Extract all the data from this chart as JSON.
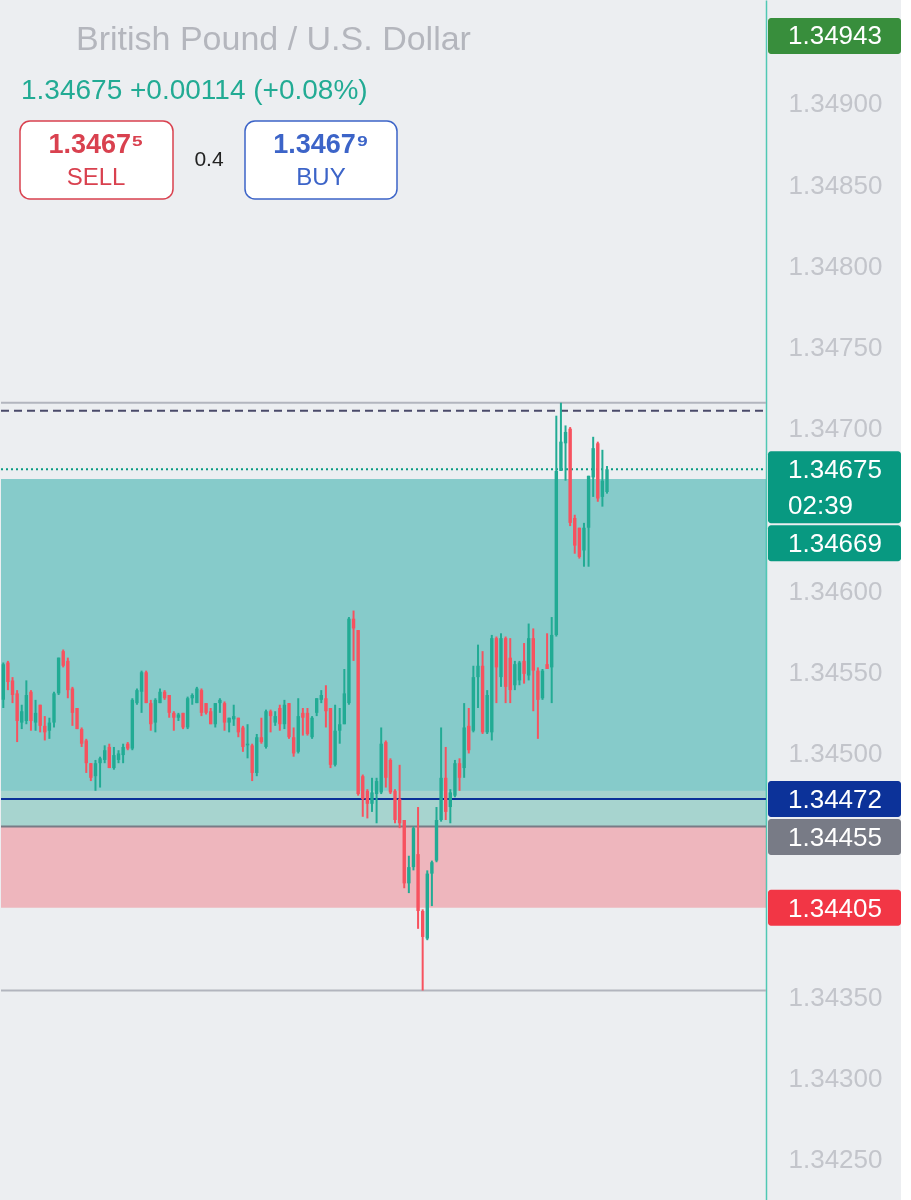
{
  "chart_data": {
    "type": "candlestick",
    "title": "British Pound / U.S. Dollar",
    "subtitle": "1.34675 +0.00114 (+0.08%)",
    "annotations": [
      "1.3467⁵",
      "SELL",
      "0.4",
      "1.3467⁹",
      "BUY",
      "1.34943"
    ],
    "categories": [
      null,
      null,
      null,
      null,
      null,
      null,
      null,
      null,
      null,
      null,
      null,
      null,
      null,
      null,
      null,
      null,
      null,
      null,
      null,
      null,
      null,
      null,
      null,
      null,
      null,
      null,
      null,
      null,
      null,
      null,
      null,
      null,
      null,
      null,
      null,
      null,
      null,
      null,
      null,
      null,
      null,
      null,
      null,
      null,
      null,
      null,
      null,
      null,
      null,
      null,
      null,
      null,
      null,
      null,
      null,
      null,
      null,
      null,
      null,
      null,
      null,
      null,
      null,
      null,
      null,
      null,
      null,
      null,
      null,
      null,
      null,
      null,
      null,
      null,
      null,
      null,
      null,
      null,
      null,
      null,
      null,
      null,
      null,
      null,
      null,
      null,
      null,
      null,
      null,
      null,
      null,
      null,
      null,
      null,
      null,
      null,
      null,
      null,
      null,
      null,
      null,
      null,
      null,
      null,
      null,
      null,
      null,
      null,
      null,
      null,
      null,
      null,
      null,
      null,
      null,
      null,
      null,
      null,
      null,
      null,
      null,
      null,
      null,
      null,
      null,
      null,
      null,
      null,
      null,
      null,
      null,
      null,
      null,
      null,
      null,
      null,
      null,
      null,
      null,
      null,
      null,
      null,
      null,
      null,
      null,
      null,
      null,
      null,
      null,
      null,
      null,
      null,
      null,
      null,
      null,
      null,
      null,
      null,
      null,
      null,
      null,
      null,
      null,
      null,
      null,
      null
    ],
    "ohlc": [
      [
        1.34533,
        1.34556,
        1.34528,
        1.34555
      ],
      [
        1.34556,
        1.34557,
        1.34539,
        1.34544
      ],
      [
        1.34545,
        1.34547,
        1.34531,
        1.34536
      ],
      [
        1.34537,
        1.34539,
        1.34507,
        1.3452
      ],
      [
        1.34519,
        1.3453,
        1.34515,
        1.34526
      ],
      [
        1.3452,
        1.34545,
        1.34518,
        1.34536
      ],
      [
        1.34538,
        1.34539,
        1.34514,
        1.3452
      ],
      [
        1.34519,
        1.34533,
        1.34514,
        1.34525
      ],
      [
        1.3453,
        1.3453,
        1.34513,
        1.34517
      ],
      [
        1.34517,
        1.34523,
        1.34508,
        1.34513
      ],
      [
        1.34514,
        1.34522,
        1.34509,
        1.34519
      ],
      [
        1.34519,
        1.34538,
        1.34516,
        1.34537
      ],
      [
        1.34537,
        1.34559,
        1.34536,
        1.34559
      ],
      [
        1.34563,
        1.34564,
        1.34553,
        1.34554
      ],
      [
        1.34557,
        1.34559,
        1.34534,
        1.34539
      ],
      [
        1.3454,
        1.34541,
        1.34517,
        1.34525
      ],
      [
        1.34528,
        1.34528,
        1.34515,
        1.34515
      ],
      [
        1.34515,
        1.34516,
        1.34504,
        1.34506
      ],
      [
        1.34508,
        1.34509,
        1.34488,
        1.34494
      ],
      [
        1.34494,
        1.34494,
        1.34483,
        1.34485
      ],
      [
        1.34486,
        1.34496,
        1.34477,
        1.34494
      ],
      [
        1.34494,
        1.34498,
        1.34479,
        1.34497
      ],
      [
        1.34496,
        1.34505,
        1.34494,
        1.34502
      ],
      [
        1.34504,
        1.34506,
        1.34491,
        1.34491
      ],
      [
        1.34491,
        1.34504,
        1.3449,
        1.34499
      ],
      [
        1.34496,
        1.34502,
        1.34494,
        1.345
      ],
      [
        1.34499,
        1.34506,
        1.34494,
        1.34504
      ],
      [
        1.34506,
        1.34507,
        1.34502,
        1.34503
      ],
      [
        1.34503,
        1.34534,
        1.34502,
        1.34533
      ],
      [
        1.34531,
        1.3454,
        1.3453,
        1.34539
      ],
      [
        1.34538,
        1.34551,
        1.34525,
        1.3455
      ],
      [
        1.3455,
        1.34551,
        1.34531,
        1.34531
      ],
      [
        1.34531,
        1.34533,
        1.34514,
        1.34518
      ],
      [
        1.34519,
        1.34534,
        1.34513,
        1.34533
      ],
      [
        1.34531,
        1.3454,
        1.34531,
        1.34538
      ],
      [
        1.34538,
        1.34539,
        1.34533,
        1.34534
      ],
      [
        1.34536,
        1.34536,
        1.34522,
        1.34525
      ],
      [
        1.34525,
        1.34526,
        1.34514,
        1.34522
      ],
      [
        1.34522,
        1.34525,
        1.3452,
        1.34524
      ],
      [
        1.34525,
        1.34525,
        1.34515,
        1.34516
      ],
      [
        1.34516,
        1.34535,
        1.34515,
        1.34534
      ],
      [
        1.34534,
        1.34537,
        1.3453,
        1.34536
      ],
      [
        1.34531,
        1.34541,
        1.34531,
        1.3454
      ],
      [
        1.34539,
        1.3454,
        1.34523,
        1.34525
      ],
      [
        1.34531,
        1.34531,
        1.34524,
        1.34525
      ],
      [
        1.34526,
        1.34528,
        1.34518,
        1.34518
      ],
      [
        1.34518,
        1.34531,
        1.34516,
        1.34531
      ],
      [
        1.34531,
        1.34534,
        1.34525,
        1.34533
      ],
      [
        1.34531,
        1.34532,
        1.34514,
        1.34519
      ],
      [
        1.34519,
        1.34522,
        1.34513,
        1.34522
      ],
      [
        1.34521,
        1.3453,
        1.34517,
        1.34523
      ],
      [
        1.34522,
        1.34522,
        1.3451,
        1.34513
      ],
      [
        1.34516,
        1.34517,
        1.34501,
        1.34504
      ],
      [
        1.34505,
        1.34518,
        1.34497,
        1.34506
      ],
      [
        1.34505,
        1.34506,
        1.34483,
        1.34488
      ],
      [
        1.34488,
        1.34512,
        1.34486,
        1.3451
      ],
      [
        1.3451,
        1.34522,
        1.34506,
        1.34507
      ],
      [
        1.34504,
        1.34527,
        1.34503,
        1.34526
      ],
      [
        1.34526,
        1.34527,
        1.34513,
        1.34523
      ],
      [
        1.34519,
        1.34526,
        1.34517,
        1.34523
      ],
      [
        1.34528,
        1.3453,
        1.34514,
        1.34518
      ],
      [
        1.34518,
        1.34533,
        1.34515,
        1.3453
      ],
      [
        1.34531,
        1.34531,
        1.34509,
        1.3451
      ],
      [
        1.3451,
        1.34516,
        1.34498,
        1.345
      ],
      [
        1.34501,
        1.34534,
        1.345,
        1.34523
      ],
      [
        1.34525,
        1.34528,
        1.34511,
        1.34522
      ],
      [
        1.34525,
        1.34528,
        1.34511,
        1.34512
      ],
      [
        1.3451,
        1.34523,
        1.34509,
        1.34522
      ],
      [
        1.34525,
        1.34534,
        1.34523,
        1.34534
      ],
      [
        1.34533,
        1.34539,
        1.34531,
        1.34536
      ],
      [
        1.34534,
        1.34542,
        1.34516,
        1.34526
      ],
      [
        1.34528,
        1.34528,
        1.34491,
        1.34493
      ],
      [
        1.34493,
        1.3453,
        1.34492,
        1.34514
      ],
      [
        1.34514,
        1.34528,
        1.34506,
        1.34518
      ],
      [
        1.34518,
        1.34552,
        1.34518,
        1.34537
      ],
      [
        1.34531,
        1.34584,
        1.3453,
        1.34583
      ],
      [
        1.34583,
        1.34588,
        1.34557,
        1.34577
      ],
      [
        1.34576,
        1.34576,
        1.34474,
        1.34475
      ],
      [
        1.34486,
        1.34487,
        1.34461,
        1.34472
      ],
      [
        1.34477,
        1.34478,
        1.3446,
        1.34469
      ],
      [
        1.34469,
        1.34485,
        1.34464,
        1.34476
      ],
      [
        1.34475,
        1.34485,
        1.34457,
        1.34483
      ],
      [
        1.34476,
        1.34516,
        1.34475,
        1.34506
      ],
      [
        1.34507,
        1.34508,
        1.34479,
        1.34485
      ],
      [
        1.34496,
        1.34497,
        1.34475,
        1.34476
      ],
      [
        1.34477,
        1.34478,
        1.34457,
        1.34459
      ],
      [
        1.34472,
        1.34493,
        1.34454,
        1.34457
      ],
      [
        1.34459,
        1.34459,
        1.34417,
        1.3442
      ],
      [
        1.3442,
        1.34437,
        1.34414,
        1.3443
      ],
      [
        1.3443,
        1.34455,
        1.34428,
        1.34454
      ],
      [
        1.34438,
        1.34467,
        1.34392,
        1.34403
      ],
      [
        1.34403,
        1.34404,
        1.34354,
        1.34387
      ],
      [
        1.34386,
        1.34428,
        1.34385,
        1.34426
      ],
      [
        1.34426,
        1.34434,
        1.34406,
        1.34433
      ],
      [
        1.34434,
        1.34467,
        1.34433,
        1.34459
      ],
      [
        1.34459,
        1.34516,
        1.34458,
        1.34485
      ],
      [
        1.34485,
        1.34504,
        1.34459,
        1.34464
      ],
      [
        1.34467,
        1.34478,
        1.34457,
        1.34476
      ],
      [
        1.34474,
        1.34496,
        1.34473,
        1.34494
      ],
      [
        1.34494,
        1.34497,
        1.34477,
        1.34485
      ],
      [
        1.34491,
        1.34531,
        1.34485,
        1.34516
      ],
      [
        1.34517,
        1.34528,
        1.345,
        1.34502
      ],
      [
        1.34514,
        1.34554,
        1.34513,
        1.34547
      ],
      [
        1.34547,
        1.34567,
        1.34528,
        1.34554
      ],
      [
        1.34554,
        1.34563,
        1.34512,
        1.34513
      ],
      [
        1.34513,
        1.34539,
        1.34512,
        1.34536
      ],
      [
        1.34513,
        1.34573,
        1.34508,
        1.34571
      ],
      [
        1.34571,
        1.34572,
        1.34531,
        1.34553
      ],
      [
        1.34547,
        1.34574,
        1.34541,
        1.34571
      ],
      [
        1.34571,
        1.34572,
        1.34531,
        1.34541
      ],
      [
        1.34559,
        1.34571,
        1.34531,
        1.34539
      ],
      [
        1.34542,
        1.34557,
        1.34539,
        1.34555
      ],
      [
        1.34545,
        1.34557,
        1.34542,
        1.34556
      ],
      [
        1.34557,
        1.34568,
        1.34543,
        1.34549
      ],
      [
        1.34548,
        1.3458,
        1.34545,
        1.34571
      ],
      [
        1.34571,
        1.34577,
        1.34526,
        1.34551
      ],
      [
        1.34551,
        1.34553,
        1.34509,
        1.34533
      ],
      [
        1.34534,
        1.34552,
        1.34533,
        1.34551
      ],
      [
        1.34555,
        1.34574,
        1.34552,
        1.34552
      ],
      [
        1.34553,
        1.34584,
        1.34531,
        1.34573
      ],
      [
        1.34573,
        1.34708,
        1.34572,
        1.34674
      ],
      [
        1.34674,
        1.34716,
        1.34674,
        1.34692
      ],
      [
        1.34691,
        1.34702,
        1.34668,
        1.34698
      ],
      [
        1.347,
        1.34701,
        1.3464,
        1.34642
      ],
      [
        1.34645,
        1.34647,
        1.34623,
        1.34628
      ],
      [
        1.34639,
        1.34639,
        1.3462,
        1.34621
      ],
      [
        1.34625,
        1.34642,
        1.34615,
        1.34639
      ],
      [
        1.34639,
        1.34671,
        1.34615,
        1.34671
      ],
      [
        1.3467,
        1.34695,
        1.34658,
        1.34688
      ],
      [
        1.34691,
        1.34692,
        1.34655,
        1.34657
      ],
      [
        1.34658,
        1.34687,
        1.34652,
        1.34668
      ],
      [
        1.34661,
        1.34677,
        1.3466,
        1.34675
      ],
      null,
      null,
      null,
      null,
      null,
      null,
      null,
      null,
      null,
      null,
      null,
      null,
      null,
      null,
      null,
      null,
      null,
      null,
      null,
      null,
      null,
      null,
      null,
      null,
      null,
      null,
      null,
      null,
      null,
      null,
      null,
      null,
      null,
      null
    ],
    "colors": [
      "#22ab94",
      "#f7525f",
      "#f7525f",
      "#f7525f",
      "#22ab94",
      "#22ab94",
      "#f7525f",
      "#22ab94",
      "#f7525f",
      "#f7525f",
      "#22ab94",
      "#22ab94",
      "#22ab94",
      "#f7525f",
      "#f7525f",
      "#f7525f",
      "#f7525f",
      "#f7525f",
      "#f7525f",
      "#f7525f",
      "#22ab94",
      "#22ab94",
      "#22ab94",
      "#f7525f",
      "#22ab94",
      "#22ab94",
      "#22ab94",
      "#f7525f",
      "#22ab94",
      "#22ab94",
      "#22ab94",
      "#f7525f",
      "#f7525f",
      "#22ab94",
      "#22ab94",
      "#f7525f",
      "#f7525f",
      "#f7525f",
      "#22ab94",
      "#f7525f",
      "#22ab94",
      "#22ab94",
      "#22ab94",
      "#f7525f",
      "#f7525f",
      "#f7525f",
      "#22ab94",
      "#22ab94",
      "#f7525f",
      "#22ab94",
      "#22ab94",
      "#f7525f",
      "#f7525f",
      "#22ab94",
      "#f7525f",
      "#22ab94",
      "#f7525f",
      "#22ab94",
      "#f7525f",
      "#22ab94",
      "#f7525f",
      "#22ab94",
      "#f7525f",
      "#f7525f",
      "#22ab94",
      "#f7525f",
      "#f7525f",
      "#22ab94",
      "#22ab94",
      "#22ab94",
      "#f7525f",
      "#f7525f",
      "#22ab94",
      "#22ab94",
      "#22ab94",
      "#22ab94",
      "#f7525f",
      "#f7525f",
      "#f7525f",
      "#f7525f",
      "#22ab94",
      "#22ab94",
      "#22ab94",
      "#f7525f",
      "#f7525f",
      "#f7525f",
      "#f7525f",
      "#f7525f",
      "#22ab94",
      "#22ab94",
      "#f7525f",
      "#f7525f",
      "#22ab94",
      "#22ab94",
      "#22ab94",
      "#22ab94",
      "#f7525f",
      "#22ab94",
      "#22ab94",
      "#f7525f",
      "#22ab94",
      "#f7525f",
      "#22ab94",
      "#22ab94",
      "#f7525f",
      "#22ab94",
      "#22ab94",
      "#f7525f",
      "#22ab94",
      "#f7525f",
      "#f7525f",
      "#22ab94",
      "#22ab94",
      "#f7525f",
      "#22ab94",
      "#f7525f",
      "#f7525f",
      "#22ab94",
      "#f7525f",
      "#22ab94",
      "#22ab94",
      "#22ab94",
      "#22ab94",
      "#f7525f",
      "#f7525f",
      "#f7525f",
      "#22ab94",
      "#22ab94",
      "#22ab94",
      "#f7525f",
      "#22ab94",
      "#22ab94",
      null,
      null,
      null,
      null,
      null,
      null,
      null,
      null,
      null,
      null,
      null,
      null,
      null,
      null,
      null,
      null,
      null,
      null,
      null,
      null,
      null,
      null,
      null,
      null,
      null,
      null,
      null,
      null,
      null,
      null,
      null,
      null,
      null,
      null
    ],
    "ylim": [
      1.34225,
      1.34964
    ],
    "yticks": [
      {
        "value": 1.3425,
        "label": "1.34250"
      },
      {
        "value": 1.343,
        "label": "1.34300"
      },
      {
        "value": 1.3435,
        "label": "1.34350"
      },
      {
        "value": 1.345,
        "label": "1.34500"
      },
      {
        "value": 1.3455,
        "label": "1.34550"
      },
      {
        "value": 1.346,
        "label": "1.34600"
      },
      {
        "value": 1.347,
        "label": "1.34700"
      },
      {
        "value": 1.3475,
        "label": "1.34750"
      },
      {
        "value": 1.348,
        "label": "1.34800"
      },
      {
        "value": 1.3485,
        "label": "1.34850"
      },
      {
        "value": 1.349,
        "label": "1.34900"
      }
    ],
    "tick_labels": "y",
    "bands": [
      {
        "axis": "y",
        "from": 1.34477,
        "to": 1.34669,
        "color": "#4fc3d9"
      },
      {
        "axis": "y",
        "from": 1.34455,
        "to": 1.34669,
        "label": "1.34669",
        "color": "#089981"
      },
      {
        "axis": "y",
        "from": 1.34455,
        "to": 1.34405,
        "label": "1.34405",
        "color": "#f23645"
      }
    ],
    "ref_lines": [
      {
        "axis": "y",
        "value": 1.34716,
        "color": "#b2b5be"
      },
      {
        "axis": "y",
        "value": 1.34711,
        "color": "#4a4a6a",
        "line_style": "dashed"
      },
      {
        "axis": "y",
        "value": 1.34675,
        "label": "1.34675\n02:39",
        "color": "#089981",
        "line_style": "dotted"
      },
      {
        "axis": "y",
        "value": 1.34472,
        "label": "1.34472",
        "color": "#0c3299"
      },
      {
        "axis": "y",
        "value": 1.34455,
        "label": "1.34455",
        "color": "#787b86"
      },
      {
        "axis": "y",
        "value": 1.34354,
        "color": "#b2b5be"
      }
    ]
  }
}
